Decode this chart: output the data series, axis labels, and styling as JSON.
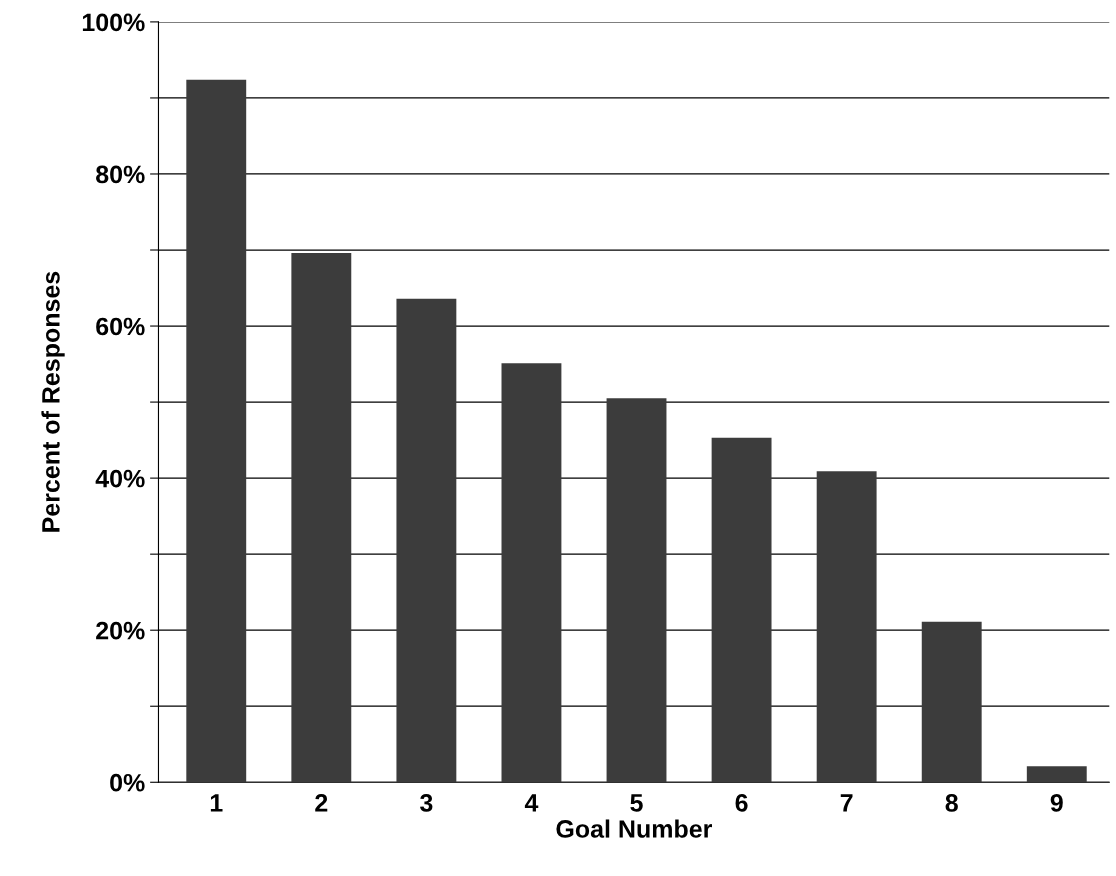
{
  "chart_data": {
    "type": "bar",
    "xlabel": "Goal Number",
    "ylabel": "Percent of Responses",
    "categories": [
      "1",
      "2",
      "3",
      "4",
      "5",
      "6",
      "7",
      "8",
      "9"
    ],
    "values": [
      92.4,
      69.6,
      63.6,
      55.1,
      50.5,
      45.3,
      40.9,
      21.1,
      2.1
    ],
    "color": "#3c3c3c",
    "ylim": [
      0,
      100
    ],
    "yticks": [
      {
        "value": 0,
        "label": "0%"
      },
      {
        "value": 10,
        "label": null
      },
      {
        "value": 20,
        "label": "20%"
      },
      {
        "value": 30,
        "label": null
      },
      {
        "value": 40,
        "label": "40%"
      },
      {
        "value": 50,
        "label": null
      },
      {
        "value": 60,
        "label": "60%"
      },
      {
        "value": 70,
        "label": null
      },
      {
        "value": 80,
        "label": "80%"
      },
      {
        "value": 90,
        "label": null
      },
      {
        "value": 100,
        "label": "100%"
      }
    ],
    "grid": "y",
    "legend": false
  }
}
